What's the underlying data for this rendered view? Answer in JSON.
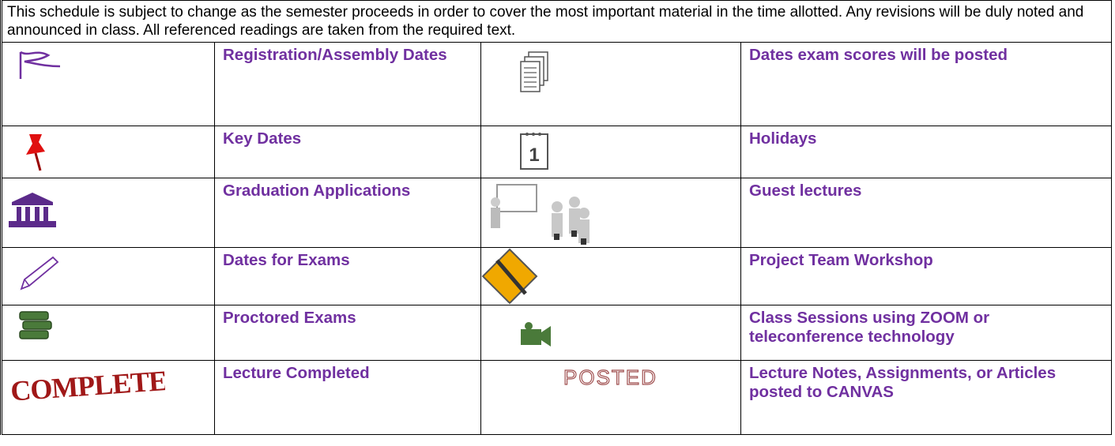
{
  "note": "This schedule is subject to change as the semester proceeds in order to cover the most important material in the time allotted.  Any revisions will be duly noted and announced in class.  All referenced readings are taken from the required text.",
  "table": {
    "rows": [
      [
        "Registration/Assembly Dates",
        "Dates exam scores will be posted"
      ],
      [
        "Key Dates",
        "Holidays"
      ],
      [
        "Graduation Applications",
        "Guest lectures"
      ],
      [
        "Dates for Exams",
        "Project Team Workshop"
      ],
      [
        "Proctored Exams",
        "Class Sessions using ZOOM or teleconference technology"
      ],
      [
        "Lecture Completed",
        "Lecture Notes, Assignments, or Articles posted to CANVAS"
      ]
    ]
  }
}
